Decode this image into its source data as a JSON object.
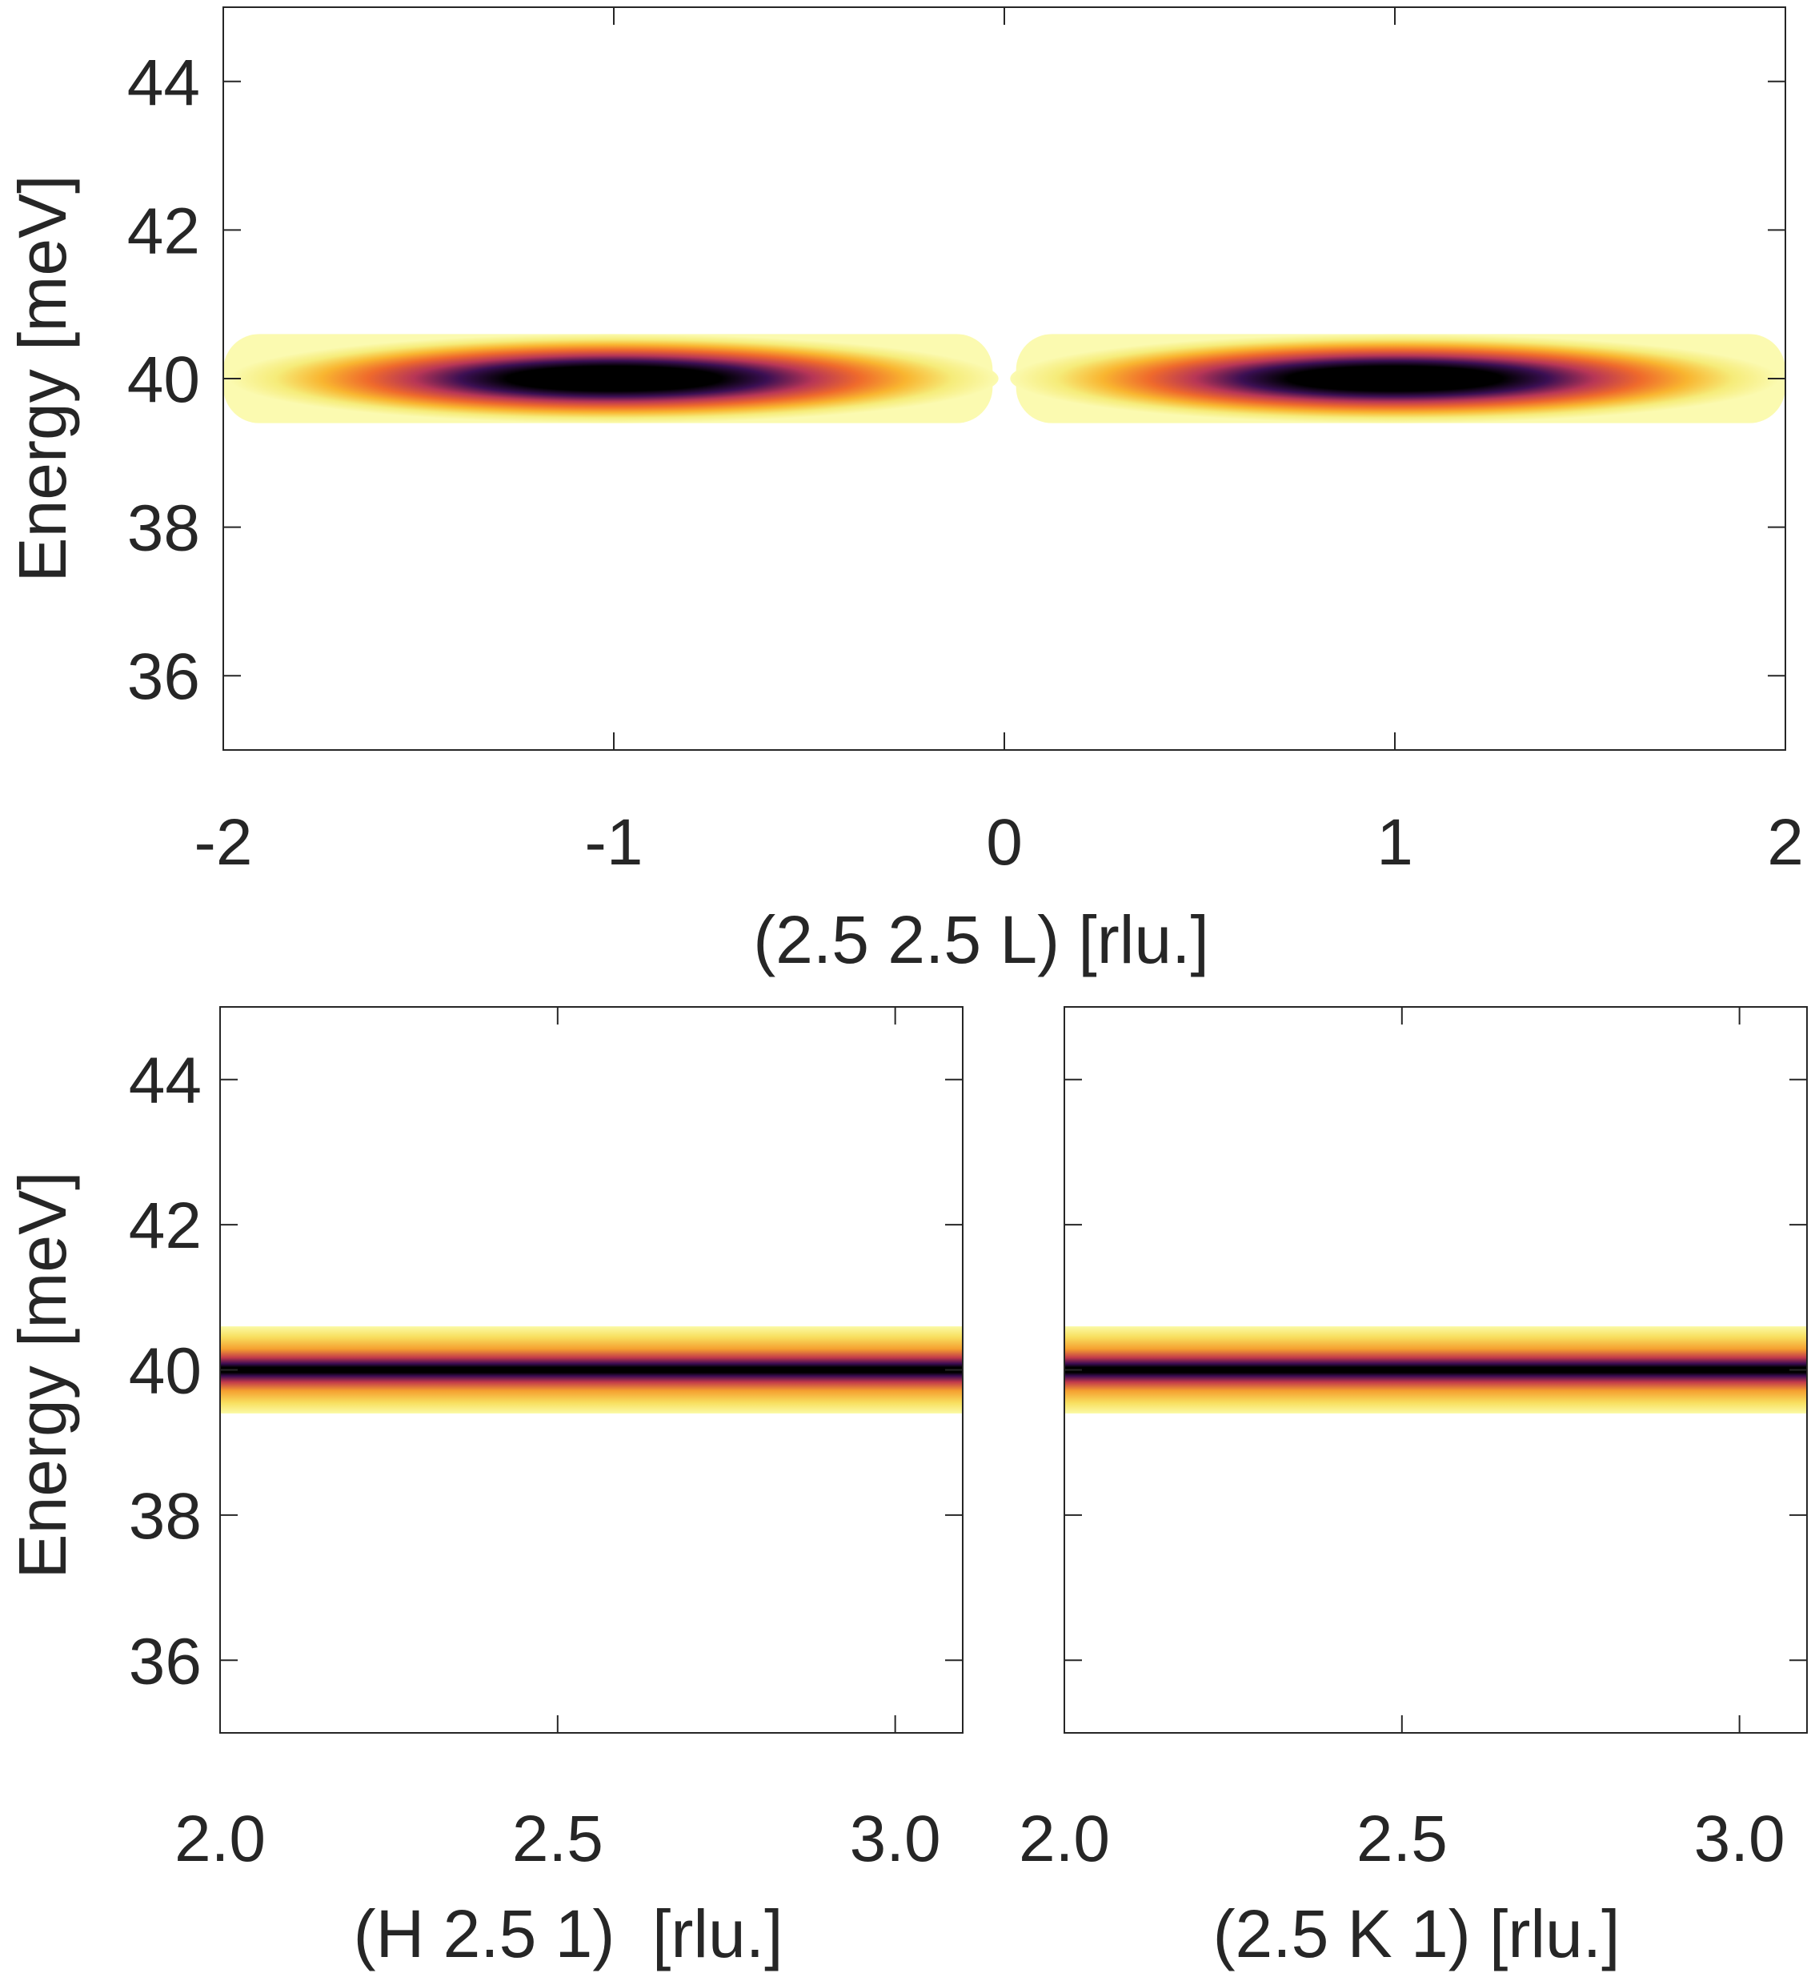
{
  "chart_data": [
    {
      "type": "heatmap",
      "panel": "top",
      "xlabel": "(2.5 2.5 L) [rlu.]",
      "ylabel": "Energy [meV]",
      "xlim": [
        -2,
        2
      ],
      "ylim": [
        35,
        45
      ],
      "xticks": [
        -2,
        -1,
        0,
        1,
        2
      ],
      "xtick_labels": [
        "-2",
        "-1",
        "0",
        "1",
        "2"
      ],
      "yticks": [
        36,
        38,
        40,
        42,
        44
      ],
      "ytick_labels": [
        "36",
        "38",
        "40",
        "42",
        "44"
      ],
      "colormap": "inferno (reversed: white/yellow low, black high)",
      "grid": false,
      "features": [
        {
          "kind": "band",
          "energy_center": 40,
          "energy_halfwidth": 0.6,
          "x_range": [
            -2.0,
            -0.03
          ],
          "peak_x": -1.0
        },
        {
          "kind": "band",
          "energy_center": 40,
          "energy_halfwidth": 0.6,
          "x_range": [
            0.03,
            2.0
          ],
          "peak_x": 1.0
        }
      ]
    },
    {
      "type": "heatmap",
      "panel": "bottom-left",
      "xlabel": "(H 2.5 1)  [rlu.]",
      "ylabel": "Energy [meV]",
      "xlim": [
        2.0,
        3.1
      ],
      "ylim": [
        35,
        45
      ],
      "xticks": [
        2.0,
        2.5,
        3.0
      ],
      "xtick_labels": [
        "2.0",
        "2.5",
        "3.0"
      ],
      "yticks": [
        36,
        38,
        40,
        42,
        44
      ],
      "ytick_labels": [
        "36",
        "38",
        "40",
        "42",
        "44"
      ],
      "colormap": "inferno (reversed: white/yellow low, black high)",
      "grid": false,
      "features": [
        {
          "kind": "band",
          "energy_center": 40,
          "energy_halfwidth": 0.6,
          "x_range": [
            2.0,
            3.1
          ]
        }
      ]
    },
    {
      "type": "heatmap",
      "panel": "bottom-right",
      "xlabel": "(2.5 K 1) [rlu.]",
      "ylabel": "",
      "xlim": [
        2.0,
        3.1
      ],
      "ylim": [
        35,
        45
      ],
      "xticks": [
        2.0,
        2.5,
        3.0
      ],
      "xtick_labels": [
        "2.0",
        "2.5",
        "3.0"
      ],
      "yticks": [
        36,
        38,
        40,
        42,
        44
      ],
      "ytick_labels": [],
      "colormap": "inferno (reversed: white/yellow low, black high)",
      "grid": false,
      "features": [
        {
          "kind": "band",
          "energy_center": 40,
          "energy_halfwidth": 0.6,
          "x_range": [
            2.0,
            3.1
          ]
        }
      ]
    }
  ]
}
